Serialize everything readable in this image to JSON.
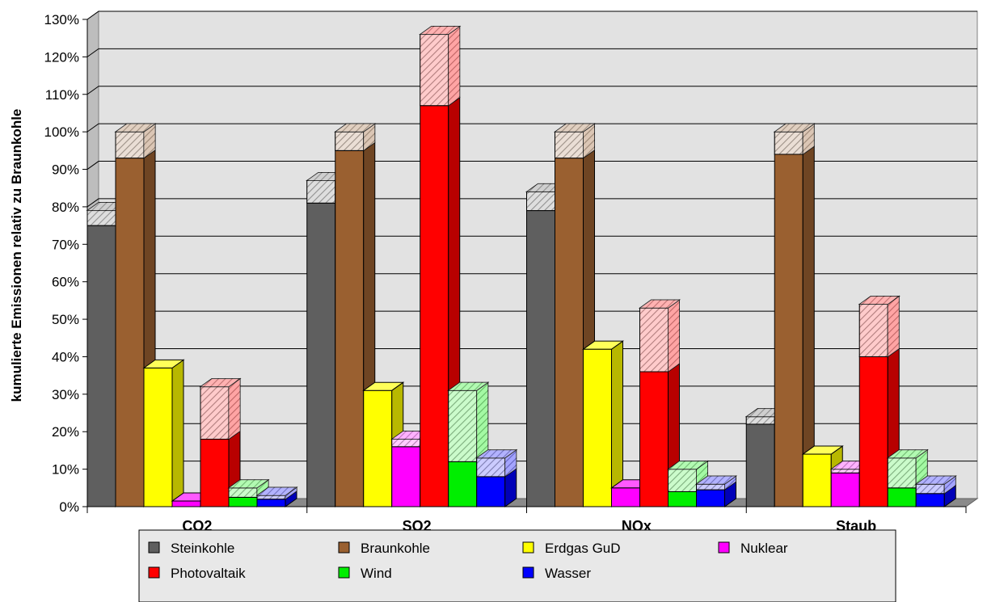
{
  "chart_data": {
    "type": "bar",
    "subtype": "3d-stacked-bar",
    "categories": [
      "CO2",
      "SO2",
      "NOx",
      "Staub"
    ],
    "ylabel": "kumulierte Emissionen relativ zu Braunkohle",
    "xlabel": "",
    "ylim": [
      0,
      130
    ],
    "y_ticks": [
      0,
      10,
      20,
      30,
      40,
      50,
      60,
      70,
      80,
      90,
      100,
      110,
      120,
      130
    ],
    "y_tick_labels": [
      "0%",
      "10%",
      "20%",
      "30%",
      "40%",
      "50%",
      "60%",
      "70%",
      "80%",
      "90%",
      "100%",
      "110%",
      "120%",
      "130%"
    ],
    "grid": true,
    "legend_position": "bottom",
    "series": [
      {
        "name": "Steinkohle",
        "color": "#5f5f5f",
        "values": [
          75,
          81,
          79,
          22
        ],
        "totals": [
          79,
          87,
          84,
          24
        ]
      },
      {
        "name": "Braunkohle",
        "color": "#9a6030",
        "values": [
          93,
          95,
          93,
          94
        ],
        "totals": [
          100,
          100,
          100,
          100
        ]
      },
      {
        "name": "Erdgas GuD",
        "color": "#ffff00",
        "values": [
          37,
          31,
          42,
          14
        ],
        "totals": [
          37,
          31,
          42,
          14
        ]
      },
      {
        "name": "Nuklear",
        "color": "#ff00ff",
        "values": [
          1.5,
          16,
          5,
          9
        ],
        "totals": [
          1.5,
          18,
          5,
          10
        ]
      },
      {
        "name": "Photovaltaik",
        "color": "#ff0000",
        "values": [
          18,
          107,
          36,
          40
        ],
        "totals": [
          32,
          126,
          53,
          54
        ]
      },
      {
        "name": "Wind",
        "color": "#00ee00",
        "values": [
          2.5,
          12,
          4,
          5
        ],
        "totals": [
          5,
          31,
          10,
          13
        ]
      },
      {
        "name": "Wasser",
        "color": "#0000ff",
        "values": [
          2,
          8,
          4.5,
          3.5
        ],
        "totals": [
          3,
          13,
          6,
          6
        ]
      }
    ]
  }
}
